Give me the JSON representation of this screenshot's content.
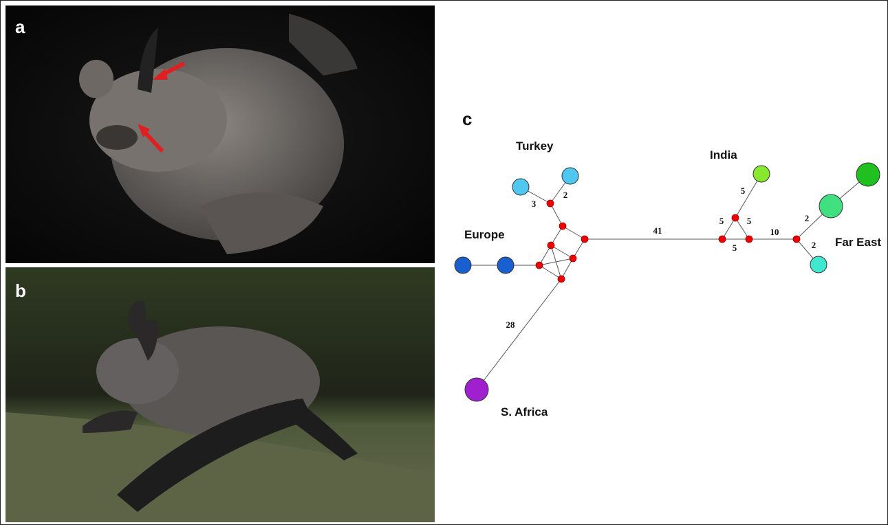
{
  "panels": {
    "a": "a",
    "b": "b",
    "c": "c"
  },
  "regions": {
    "turkey": "Turkey",
    "india": "India",
    "europe": "Europe",
    "far_east": "Far East",
    "south_africa": "S. Africa"
  },
  "edge_labels": [
    "3",
    "2",
    "41",
    "5",
    "5",
    "5",
    "5",
    "10",
    "2",
    "2",
    "28"
  ]
}
